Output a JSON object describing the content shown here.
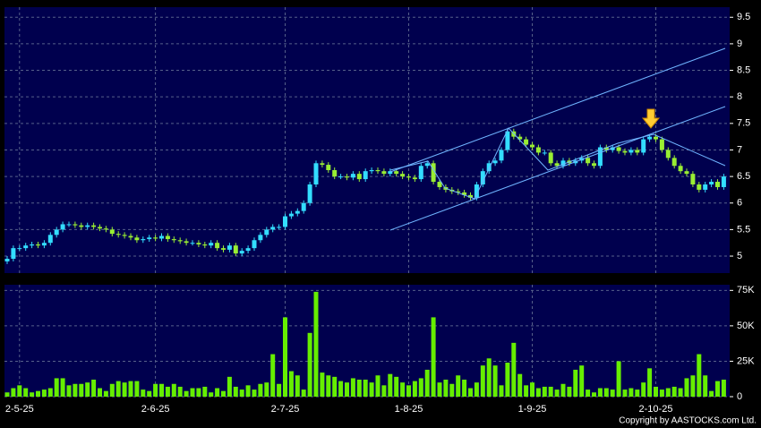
{
  "chart_data": [
    {
      "type": "candlestick",
      "up_color": "#33ddff",
      "down_color": "#99ee33",
      "grid": true,
      "ylim": [
        4.68,
        9.69
      ],
      "yticks": [
        5,
        5.5,
        6,
        6.5,
        7,
        7.5,
        8,
        8.5,
        9,
        9.5
      ],
      "open": [
        4.9,
        4.95,
        5.15,
        5.15,
        5.2,
        5.22,
        5.2,
        5.25,
        5.4,
        5.5,
        5.6,
        5.6,
        5.58,
        5.55,
        5.58,
        5.55,
        5.52,
        5.5,
        5.42,
        5.4,
        5.38,
        5.35,
        5.3,
        5.32,
        5.35,
        5.33,
        5.38,
        5.32,
        5.3,
        5.28,
        5.25,
        5.25,
        5.22,
        5.2,
        5.25,
        5.15,
        5.12,
        5.2,
        5.05,
        5.1,
        5.15,
        5.3,
        5.4,
        5.5,
        5.55,
        5.55,
        5.75,
        5.8,
        5.85,
        6.0,
        6.35,
        6.75,
        6.72,
        6.62,
        6.5,
        6.5,
        6.48,
        6.55,
        6.45,
        6.6,
        6.62,
        6.6,
        6.55,
        6.6,
        6.55,
        6.5,
        6.48,
        6.45,
        6.7,
        6.75,
        6.4,
        6.3,
        6.25,
        6.22,
        6.2,
        6.15,
        6.1,
        6.35,
        6.6,
        6.75,
        6.8,
        7.0,
        7.35,
        7.25,
        7.2,
        7.1,
        7.05,
        6.95,
        6.95,
        6.75,
        6.7,
        6.8,
        6.75,
        6.8,
        6.85,
        6.75,
        6.7,
        7.05,
        7.0,
        7.05,
        6.98,
        6.95,
        7.0,
        6.95,
        7.2,
        7.25,
        7.2,
        7.0,
        6.85,
        6.7,
        6.6,
        6.55,
        6.35,
        6.25,
        6.35,
        6.4,
        6.3
      ],
      "high": [
        5.0,
        5.2,
        5.2,
        5.25,
        5.27,
        5.27,
        5.3,
        5.45,
        5.55,
        5.65,
        5.65,
        5.65,
        5.63,
        5.63,
        5.63,
        5.6,
        5.57,
        5.55,
        5.47,
        5.45,
        5.43,
        5.4,
        5.37,
        5.4,
        5.4,
        5.43,
        5.43,
        5.37,
        5.35,
        5.33,
        5.3,
        5.3,
        5.27,
        5.3,
        5.3,
        5.2,
        5.25,
        5.25,
        5.15,
        5.2,
        5.35,
        5.45,
        5.55,
        5.6,
        5.6,
        5.8,
        5.85,
        5.9,
        6.05,
        6.4,
        6.8,
        6.8,
        6.77,
        6.67,
        6.55,
        6.55,
        6.6,
        6.6,
        6.65,
        6.67,
        6.67,
        6.65,
        6.65,
        6.65,
        6.6,
        6.55,
        6.53,
        6.75,
        6.8,
        6.8,
        6.45,
        6.35,
        6.3,
        6.27,
        6.25,
        6.2,
        6.4,
        6.65,
        6.8,
        6.85,
        7.05,
        7.4,
        7.4,
        7.3,
        7.25,
        7.15,
        7.1,
        7.0,
        7.0,
        6.8,
        6.85,
        6.85,
        6.85,
        6.9,
        6.9,
        6.8,
        7.1,
        7.1,
        7.1,
        7.1,
        7.03,
        7.05,
        7.05,
        7.25,
        7.3,
        7.3,
        7.25,
        7.05,
        6.9,
        6.75,
        6.65,
        6.6,
        6.4,
        6.4,
        6.45,
        6.45,
        6.55
      ],
      "low": [
        4.85,
        4.9,
        5.1,
        5.1,
        5.15,
        5.15,
        5.15,
        5.2,
        5.35,
        5.45,
        5.55,
        5.53,
        5.5,
        5.5,
        5.5,
        5.47,
        5.45,
        5.37,
        5.35,
        5.33,
        5.3,
        5.25,
        5.25,
        5.27,
        5.28,
        5.28,
        5.27,
        5.25,
        5.23,
        5.2,
        5.2,
        5.17,
        5.15,
        5.15,
        5.1,
        5.07,
        5.07,
        5.0,
        5.0,
        5.05,
        5.1,
        5.25,
        5.35,
        5.45,
        5.5,
        5.5,
        5.7,
        5.75,
        5.8,
        5.95,
        6.3,
        6.67,
        6.57,
        6.45,
        6.45,
        6.43,
        6.43,
        6.4,
        6.4,
        6.55,
        6.55,
        6.5,
        6.5,
        6.5,
        6.45,
        6.43,
        6.4,
        6.4,
        6.65,
        6.35,
        6.25,
        6.2,
        6.17,
        6.15,
        6.1,
        6.05,
        6.05,
        6.3,
        6.55,
        6.7,
        6.75,
        6.95,
        7.2,
        7.15,
        7.05,
        7.0,
        6.9,
        6.9,
        6.7,
        6.65,
        6.65,
        6.7,
        6.7,
        6.75,
        6.7,
        6.65,
        6.65,
        6.95,
        6.95,
        6.93,
        6.9,
        6.9,
        6.9,
        6.9,
        7.15,
        7.15,
        6.95,
        6.8,
        6.65,
        6.55,
        6.5,
        6.3,
        6.2,
        6.2,
        6.3,
        6.25,
        6.25
      ],
      "close": [
        4.95,
        5.15,
        5.15,
        5.2,
        5.22,
        5.2,
        5.25,
        5.4,
        5.5,
        5.6,
        5.6,
        5.58,
        5.55,
        5.58,
        5.55,
        5.52,
        5.5,
        5.42,
        5.4,
        5.38,
        5.35,
        5.3,
        5.32,
        5.35,
        5.33,
        5.38,
        5.32,
        5.3,
        5.28,
        5.25,
        5.25,
        5.22,
        5.2,
        5.25,
        5.15,
        5.12,
        5.2,
        5.05,
        5.1,
        5.15,
        5.3,
        5.4,
        5.5,
        5.55,
        5.55,
        5.75,
        5.8,
        5.85,
        6.0,
        6.35,
        6.75,
        6.72,
        6.62,
        6.5,
        6.5,
        6.48,
        6.55,
        6.45,
        6.6,
        6.62,
        6.6,
        6.55,
        6.6,
        6.55,
        6.5,
        6.48,
        6.45,
        6.7,
        6.75,
        6.4,
        6.3,
        6.25,
        6.22,
        6.2,
        6.15,
        6.1,
        6.35,
        6.6,
        6.75,
        6.8,
        7.0,
        7.35,
        7.25,
        7.2,
        7.1,
        7.05,
        6.95,
        6.95,
        6.75,
        6.7,
        6.8,
        6.75,
        6.8,
        6.85,
        6.75,
        6.7,
        7.05,
        7.0,
        7.05,
        6.98,
        6.95,
        7.0,
        6.95,
        7.2,
        7.25,
        7.2,
        7.0,
        6.85,
        6.7,
        6.6,
        6.55,
        6.35,
        6.25,
        6.35,
        6.4,
        6.3,
        6.5
      ]
    },
    {
      "type": "bar",
      "color": "#66ee00",
      "grid": true,
      "ylim": [
        0,
        79000
      ],
      "yticks": [
        0,
        {
          "value": 25000,
          "label": "25K"
        },
        {
          "value": 50000,
          "label": "50K"
        },
        {
          "value": 75000,
          "label": "75K"
        }
      ],
      "categories": [
        null,
        null,
        "2-5-25",
        null,
        null,
        null,
        null,
        null,
        null,
        null,
        null,
        null,
        null,
        null,
        null,
        null,
        null,
        null,
        null,
        null,
        null,
        null,
        null,
        null,
        "2-6-25",
        null,
        null,
        null,
        null,
        null,
        null,
        null,
        null,
        null,
        null,
        null,
        null,
        null,
        null,
        null,
        null,
        null,
        null,
        null,
        null,
        "2-7-25",
        null,
        null,
        null,
        null,
        null,
        null,
        null,
        null,
        null,
        null,
        null,
        null,
        null,
        null,
        null,
        null,
        null,
        null,
        null,
        "1-8-25",
        null,
        null,
        null,
        null,
        null,
        null,
        null,
        null,
        null,
        null,
        null,
        null,
        null,
        null,
        null,
        null,
        null,
        null,
        null,
        "1-9-25",
        null,
        null,
        null,
        null,
        null,
        null,
        null,
        null,
        null,
        null,
        null,
        null,
        null,
        null,
        null,
        null,
        null,
        null,
        null,
        "2-10-25",
        null,
        null,
        null,
        null,
        null,
        null,
        null,
        null,
        null,
        null,
        null
      ],
      "values": [
        3000,
        6000,
        8000,
        6000,
        3000,
        4000,
        5000,
        6000,
        13000,
        13000,
        8000,
        9000,
        9000,
        10000,
        12000,
        6000,
        4000,
        9000,
        11000,
        10000,
        11000,
        11000,
        5000,
        4000,
        9000,
        9000,
        7000,
        9000,
        7000,
        4000,
        6000,
        6000,
        7000,
        3000,
        6000,
        4000,
        14000,
        7000,
        5000,
        8000,
        5000,
        9000,
        10000,
        30000,
        9000,
        56000,
        18000,
        15000,
        5000,
        45000,
        74000,
        17000,
        15000,
        14000,
        11000,
        10000,
        13000,
        12000,
        12000,
        10000,
        15000,
        8000,
        16000,
        14000,
        10000,
        8000,
        11000,
        13000,
        19000,
        56000,
        10000,
        12000,
        9000,
        15000,
        12000,
        6000,
        10000,
        22000,
        27000,
        22000,
        8000,
        24000,
        38000,
        16000,
        8000,
        10000,
        6000,
        7000,
        7000,
        5000,
        9000,
        7000,
        19000,
        22000,
        5000,
        3000,
        6000,
        6000,
        5000,
        25000,
        5000,
        6000,
        5000,
        10000,
        20000,
        7000,
        5000,
        6000,
        7000,
        6000,
        13000,
        15000,
        30000,
        15000,
        4000,
        11000,
        12000
      ]
    }
  ],
  "copyright": "Copyright by AASTOCKS.com Ltd."
}
